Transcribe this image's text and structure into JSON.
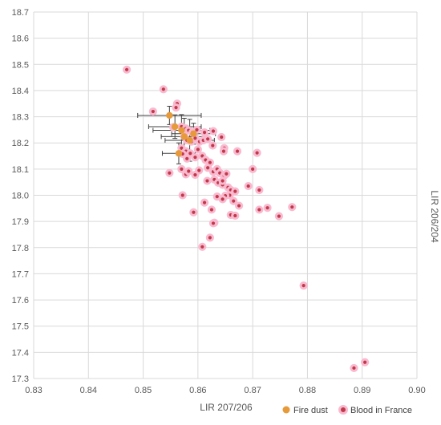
{
  "chart_data": {
    "type": "scatter",
    "title": "",
    "xlabel": "LIR 207/206",
    "ylabel": "LIR 206/204",
    "xlim": [
      0.83,
      0.9
    ],
    "ylim": [
      17.3,
      18.7
    ],
    "x_ticks": [
      "0.83",
      "0.84",
      "0.85",
      "0.86",
      "0.87",
      "0.88",
      "0.89",
      "0.90"
    ],
    "y_ticks": [
      "17.3",
      "17.4",
      "17.5",
      "17.6",
      "17.7",
      "17.8",
      "17.9",
      "18.0",
      "18.1",
      "18.2",
      "18.3",
      "18.4",
      "18.5",
      "18.6",
      "18.7"
    ],
    "grid": true,
    "legend_position": "bottom-right",
    "series": [
      {
        "name": "Fire dust",
        "color": "#e69a3a",
        "points": [
          {
            "x": 0.8548,
            "y": 18.305,
            "xerr": 0.0058,
            "yerr": 0.035
          },
          {
            "x": 0.8558,
            "y": 18.262,
            "xerr": 0.0048,
            "yerr": 0.045
          },
          {
            "x": 0.857,
            "y": 18.248,
            "xerr": 0.0052,
            "yerr": 0.06
          },
          {
            "x": 0.8575,
            "y": 18.224,
            "xerr": 0.0042,
            "yerr": 0.07
          },
          {
            "x": 0.8585,
            "y": 18.21,
            "xerr": 0.0045,
            "yerr": 0.08
          },
          {
            "x": 0.8592,
            "y": 18.235,
            "xerr": 0.004,
            "yerr": 0.04
          },
          {
            "x": 0.8565,
            "y": 18.16,
            "xerr": 0.003,
            "yerr": 0.04
          }
        ]
      },
      {
        "name": "Blood in France",
        "color": "#c0394a",
        "points": [
          {
            "x": 0.847,
            "y": 18.48
          },
          {
            "x": 0.8537,
            "y": 18.405
          },
          {
            "x": 0.8518,
            "y": 18.32
          },
          {
            "x": 0.8562,
            "y": 18.35
          },
          {
            "x": 0.856,
            "y": 18.335
          },
          {
            "x": 0.8555,
            "y": 18.26
          },
          {
            "x": 0.857,
            "y": 18.262
          },
          {
            "x": 0.8578,
            "y": 18.255
          },
          {
            "x": 0.8583,
            "y": 18.248
          },
          {
            "x": 0.859,
            "y": 18.24
          },
          {
            "x": 0.8598,
            "y": 18.25
          },
          {
            "x": 0.8612,
            "y": 18.24
          },
          {
            "x": 0.8628,
            "y": 18.245
          },
          {
            "x": 0.8643,
            "y": 18.222
          },
          {
            "x": 0.8575,
            "y": 18.225
          },
          {
            "x": 0.858,
            "y": 18.21
          },
          {
            "x": 0.8588,
            "y": 18.205
          },
          {
            "x": 0.8595,
            "y": 18.218
          },
          {
            "x": 0.8603,
            "y": 18.205
          },
          {
            "x": 0.861,
            "y": 18.21
          },
          {
            "x": 0.8618,
            "y": 18.215
          },
          {
            "x": 0.8627,
            "y": 18.19
          },
          {
            "x": 0.8648,
            "y": 18.18
          },
          {
            "x": 0.8647,
            "y": 18.168
          },
          {
            "x": 0.8672,
            "y": 18.168
          },
          {
            "x": 0.8708,
            "y": 18.162
          },
          {
            "x": 0.857,
            "y": 18.18
          },
          {
            "x": 0.8578,
            "y": 18.168
          },
          {
            "x": 0.8586,
            "y": 18.16
          },
          {
            "x": 0.86,
            "y": 18.175
          },
          {
            "x": 0.8608,
            "y": 18.15
          },
          {
            "x": 0.8595,
            "y": 18.145
          },
          {
            "x": 0.858,
            "y": 18.14
          },
          {
            "x": 0.8572,
            "y": 18.158
          },
          {
            "x": 0.8614,
            "y": 18.135
          },
          {
            "x": 0.8622,
            "y": 18.125
          },
          {
            "x": 0.8618,
            "y": 18.105
          },
          {
            "x": 0.8628,
            "y": 18.09
          },
          {
            "x": 0.8635,
            "y": 18.1
          },
          {
            "x": 0.864,
            "y": 18.085
          },
          {
            "x": 0.8648,
            "y": 18.075
          },
          {
            "x": 0.8652,
            "y": 18.082
          },
          {
            "x": 0.863,
            "y": 18.06
          },
          {
            "x": 0.8617,
            "y": 18.055
          },
          {
            "x": 0.8637,
            "y": 18.048
          },
          {
            "x": 0.8645,
            "y": 18.04
          },
          {
            "x": 0.8655,
            "y": 18.03
          },
          {
            "x": 0.8645,
            "y": 18.055
          },
          {
            "x": 0.866,
            "y": 18.02
          },
          {
            "x": 0.8668,
            "y": 18.015
          },
          {
            "x": 0.8658,
            "y": 18.0
          },
          {
            "x": 0.865,
            "y": 17.998
          },
          {
            "x": 0.8635,
            "y": 17.995
          },
          {
            "x": 0.8645,
            "y": 17.985
          },
          {
            "x": 0.8665,
            "y": 17.978
          },
          {
            "x": 0.8675,
            "y": 17.96
          },
          {
            "x": 0.8692,
            "y": 18.035
          },
          {
            "x": 0.87,
            "y": 18.1
          },
          {
            "x": 0.8712,
            "y": 18.02
          },
          {
            "x": 0.8712,
            "y": 17.945
          },
          {
            "x": 0.8727,
            "y": 17.952
          },
          {
            "x": 0.8748,
            "y": 17.92
          },
          {
            "x": 0.8772,
            "y": 17.955
          },
          {
            "x": 0.866,
            "y": 17.925
          },
          {
            "x": 0.8668,
            "y": 17.922
          },
          {
            "x": 0.8625,
            "y": 17.945
          },
          {
            "x": 0.8592,
            "y": 17.935
          },
          {
            "x": 0.8612,
            "y": 17.972
          },
          {
            "x": 0.863,
            "y": 17.895
          },
          {
            "x": 0.8628,
            "y": 17.893
          },
          {
            "x": 0.8622,
            "y": 17.838
          },
          {
            "x": 0.8608,
            "y": 17.803
          },
          {
            "x": 0.8572,
            "y": 18.0
          },
          {
            "x": 0.8548,
            "y": 18.085
          },
          {
            "x": 0.857,
            "y": 18.1
          },
          {
            "x": 0.8578,
            "y": 18.08
          },
          {
            "x": 0.8583,
            "y": 18.092
          },
          {
            "x": 0.8595,
            "y": 18.078
          },
          {
            "x": 0.8602,
            "y": 18.095
          },
          {
            "x": 0.8793,
            "y": 17.655
          },
          {
            "x": 0.8885,
            "y": 17.34
          },
          {
            "x": 0.8905,
            "y": 17.362
          }
        ]
      }
    ]
  }
}
